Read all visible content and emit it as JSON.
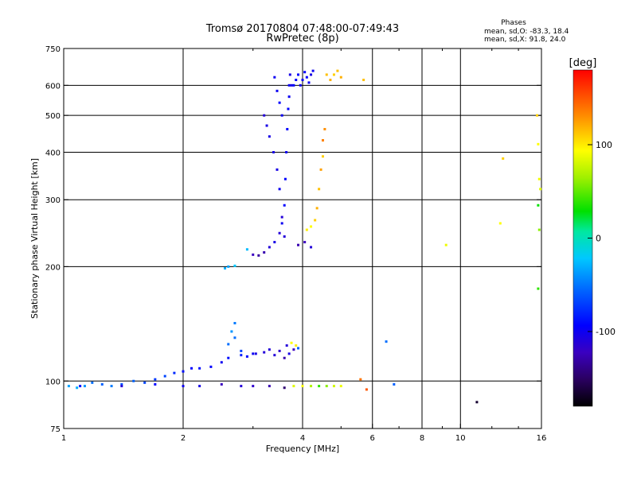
{
  "chart_data": {
    "type": "scatter",
    "title": "Tromsø 20170804 07:48:00-07:49:43",
    "subtitle": "RwPretec (8p)",
    "stats": {
      "heading": "Phases",
      "line_o": "mean, sd,O: -83.3, 18.4",
      "line_x": "mean, sd,X:  91.8, 24.0"
    },
    "xlabel": "Frequency [MHz]",
    "ylabel": "Stationary phase Virtual Height [km]",
    "x_scale": "log",
    "y_scale": "log",
    "xlim": [
      1,
      16
    ],
    "ylim": [
      75,
      750
    ],
    "x_ticks": [
      1,
      2,
      4,
      6,
      8,
      10,
      16
    ],
    "x_tick_labels": [
      "1",
      "2",
      "4",
      "6",
      "8",
      "10",
      "16"
    ],
    "x_grid": [
      2,
      4,
      6,
      8,
      10
    ],
    "y_ticks": [
      75,
      100,
      200,
      300,
      400,
      500,
      600,
      750
    ],
    "y_tick_labels": [
      "75",
      "100",
      "200",
      "300",
      "400",
      "500",
      "600",
      "750"
    ],
    "y_grid": [
      100,
      200,
      300,
      400,
      500,
      600
    ],
    "grid": true,
    "colorbar": {
      "label": "[deg]",
      "range": [
        -180,
        180
      ],
      "ticks": [
        -100,
        0,
        100
      ],
      "tick_labels": [
        "-100",
        "0",
        "100"
      ]
    },
    "series": [
      {
        "name": "",
        "points": [
          [
            1.03,
            97,
            -35
          ],
          [
            1.08,
            96,
            -30
          ],
          [
            1.13,
            97,
            -40
          ],
          [
            1.18,
            99,
            -55
          ],
          [
            1.25,
            98,
            -60
          ],
          [
            1.32,
            97,
            -50
          ],
          [
            1.4,
            98,
            -65
          ],
          [
            1.5,
            100,
            -60
          ],
          [
            1.6,
            99,
            -70
          ],
          [
            1.7,
            101,
            -75
          ],
          [
            1.8,
            103,
            -70
          ],
          [
            1.9,
            105,
            -80
          ],
          [
            2.0,
            106,
            -90
          ],
          [
            2.1,
            108,
            -95
          ],
          [
            2.2,
            108,
            -90
          ],
          [
            2.35,
            109,
            -95
          ],
          [
            2.5,
            112,
            -100
          ],
          [
            2.6,
            115,
            -90
          ],
          [
            2.7,
            130,
            -55
          ],
          [
            2.8,
            117,
            -85
          ],
          [
            2.9,
            116,
            -90
          ],
          [
            3.0,
            118,
            -100
          ],
          [
            3.2,
            119,
            -110
          ],
          [
            3.4,
            117,
            -110
          ],
          [
            3.6,
            115,
            -125
          ],
          [
            3.7,
            118,
            -105
          ],
          [
            3.8,
            121,
            -120
          ],
          [
            3.9,
            122,
            -60
          ]
        ]
      },
      {
        "name": "",
        "points": [
          [
            2.6,
            125,
            -55
          ],
          [
            2.65,
            135,
            -40
          ],
          [
            2.7,
            142,
            -50
          ],
          [
            2.8,
            120,
            -70
          ],
          [
            3.05,
            118,
            -105
          ],
          [
            3.3,
            121,
            -110
          ],
          [
            3.5,
            120,
            -115
          ],
          [
            3.65,
            124,
            -110
          ],
          [
            3.75,
            126,
            95
          ],
          [
            3.85,
            124,
            100
          ]
        ]
      },
      {
        "name": "",
        "points": [
          [
            1.1,
            97,
            -90
          ],
          [
            1.4,
            97,
            -110
          ],
          [
            1.7,
            98,
            -95
          ],
          [
            2.0,
            97,
            -100
          ],
          [
            2.2,
            97,
            -105
          ],
          [
            2.5,
            98,
            -120
          ],
          [
            2.8,
            97,
            -110
          ],
          [
            3.0,
            97,
            -115
          ],
          [
            3.3,
            97,
            -125
          ],
          [
            3.6,
            96,
            -145
          ],
          [
            3.8,
            97,
            85
          ],
          [
            4.0,
            97,
            95
          ],
          [
            4.2,
            97,
            70
          ],
          [
            4.4,
            97,
            40
          ],
          [
            4.6,
            97,
            60
          ],
          [
            4.8,
            97,
            80
          ],
          [
            5.0,
            97,
            90
          ],
          [
            5.6,
            101,
            140
          ],
          [
            5.8,
            95,
            150
          ]
        ]
      },
      {
        "name": "",
        "points": [
          [
            2.55,
            198,
            -30
          ],
          [
            2.6,
            200,
            -35
          ],
          [
            2.7,
            201,
            -20
          ],
          [
            2.9,
            222,
            -25
          ],
          [
            3.0,
            215,
            -120
          ],
          [
            3.1,
            214,
            -130
          ],
          [
            3.2,
            218,
            -125
          ],
          [
            3.3,
            225,
            -110
          ],
          [
            3.4,
            232,
            -105
          ],
          [
            3.5,
            245,
            -110
          ],
          [
            3.55,
            260,
            -100
          ],
          [
            3.6,
            290,
            -95
          ],
          [
            3.62,
            340,
            -95
          ],
          [
            3.64,
            400,
            -100
          ],
          [
            3.66,
            460,
            -95
          ],
          [
            3.68,
            520,
            -95
          ],
          [
            3.7,
            560,
            -100
          ],
          [
            3.7,
            600,
            -100
          ],
          [
            3.72,
            640,
            -105
          ],
          [
            3.75,
            600,
            -105
          ]
        ]
      },
      {
        "name": "",
        "points": [
          [
            3.2,
            500,
            -110
          ],
          [
            3.25,
            470,
            -105
          ],
          [
            3.3,
            440,
            -105
          ],
          [
            3.38,
            400,
            -105
          ],
          [
            3.45,
            360,
            -105
          ],
          [
            3.5,
            320,
            -100
          ],
          [
            3.55,
            270,
            -110
          ],
          [
            3.6,
            240,
            -110
          ],
          [
            3.4,
            630,
            -100
          ],
          [
            3.45,
            580,
            -100
          ],
          [
            3.5,
            540,
            -95
          ],
          [
            3.55,
            500,
            -100
          ]
        ]
      },
      {
        "name": "",
        "points": [
          [
            3.8,
            600,
            -95
          ],
          [
            3.85,
            620,
            -95
          ],
          [
            3.9,
            640,
            -95
          ],
          [
            3.95,
            600,
            -100
          ],
          [
            4.0,
            620,
            -100
          ],
          [
            4.05,
            650,
            -95
          ],
          [
            4.1,
            630,
            -95
          ],
          [
            4.15,
            610,
            -100
          ],
          [
            4.2,
            640,
            -105
          ],
          [
            4.25,
            655,
            -100
          ]
        ]
      },
      {
        "name": "",
        "points": [
          [
            4.1,
            250,
            100
          ],
          [
            4.2,
            255,
            95
          ],
          [
            4.3,
            265,
            110
          ],
          [
            4.35,
            285,
            120
          ],
          [
            4.4,
            320,
            115
          ],
          [
            4.45,
            360,
            125
          ],
          [
            4.5,
            390,
            110
          ],
          [
            4.5,
            430,
            135
          ],
          [
            4.55,
            460,
            130
          ],
          [
            4.6,
            640,
            115
          ],
          [
            4.7,
            620,
            120
          ],
          [
            4.8,
            640,
            110
          ],
          [
            4.9,
            655,
            115
          ],
          [
            5.0,
            630,
            120
          ],
          [
            5.7,
            620,
            115
          ]
        ]
      },
      {
        "name": "",
        "points": [
          [
            4.05,
            232,
            -120
          ],
          [
            4.2,
            225,
            -110
          ],
          [
            3.9,
            228,
            -125
          ],
          [
            6.5,
            127,
            -55
          ],
          [
            6.8,
            98,
            -60
          ],
          [
            9.2,
            228,
            90
          ],
          [
            11.0,
            88,
            -165
          ],
          [
            12.6,
            260,
            95
          ],
          [
            12.8,
            385,
            110
          ],
          [
            15.6,
            500,
            110
          ],
          [
            15.7,
            420,
            95
          ],
          [
            15.8,
            340,
            90
          ],
          [
            15.7,
            290,
            30
          ],
          [
            15.9,
            320,
            85
          ],
          [
            15.7,
            175,
            40
          ],
          [
            15.8,
            250,
            60
          ]
        ]
      }
    ]
  }
}
